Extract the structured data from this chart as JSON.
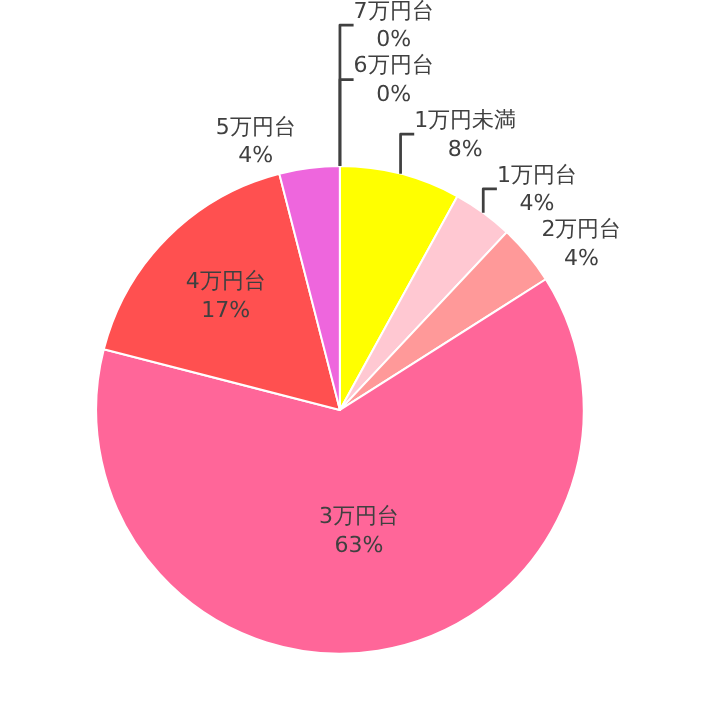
{
  "chart_data": {
    "type": "pie",
    "categories": [
      "1万円未満",
      "1万円台",
      "2万円台",
      "3万円台",
      "4万円台",
      "5万円台",
      "6万円台",
      "7万円台"
    ],
    "values": [
      8,
      4,
      4,
      63,
      17,
      4,
      0,
      0
    ],
    "colors": [
      "#ffff00",
      "#ffc8d2",
      "#ff9999",
      "#ff6699",
      "#ff5050",
      "#ee66dd",
      "#ffffff",
      "#ffffff"
    ],
    "value_labels": [
      "8%",
      "4%",
      "4%",
      "63%",
      "17%",
      "4%",
      "0%",
      "0%"
    ]
  }
}
